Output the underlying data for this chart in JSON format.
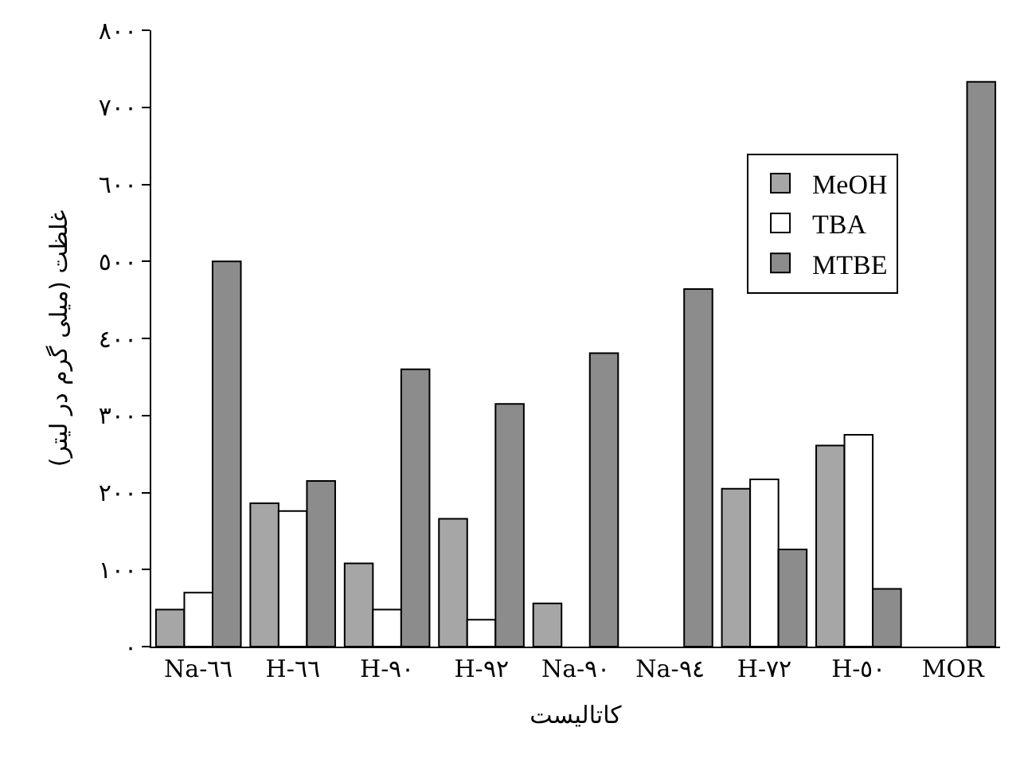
{
  "chart_data": {
    "type": "bar",
    "xlabel": "کاتالیست",
    "ylabel": "غلظت (میلی گرم در لیتر)",
    "categories": [
      "Na-٦٦",
      "H-٦٦",
      "H-٩٠",
      "H-٩٢",
      "Na-٩٠",
      "Na-٩٤",
      "H-٧٢",
      "H-٥٠",
      "MOR"
    ],
    "series": [
      {
        "name": "MeOH",
        "color": "#a6a6a6",
        "values": [
          48,
          186,
          108,
          166,
          56,
          null,
          205,
          261,
          null
        ]
      },
      {
        "name": "TBA",
        "color": "#ffffff",
        "values": [
          70,
          176,
          48,
          35,
          null,
          null,
          217,
          275,
          null
        ]
      },
      {
        "name": "MTBE",
        "color": "#8c8c8c",
        "values": [
          500,
          215,
          360,
          315,
          381,
          464,
          126,
          75,
          733
        ]
      }
    ],
    "ylim": [
      0,
      800
    ],
    "yticks": [
      {
        "value": 0,
        "label": "٠"
      },
      {
        "value": 100,
        "label": "١٠٠"
      },
      {
        "value": 200,
        "label": "٢٠٠"
      },
      {
        "value": 300,
        "label": "٣٠٠"
      },
      {
        "value": 400,
        "label": "٤٠٠"
      },
      {
        "value": 500,
        "label": "٥٠٠"
      },
      {
        "value": 600,
        "label": "٦٠٠"
      },
      {
        "value": 700,
        "label": "٧٠٠"
      },
      {
        "value": 800,
        "label": "٨٠٠"
      }
    ],
    "legend": "top right"
  }
}
